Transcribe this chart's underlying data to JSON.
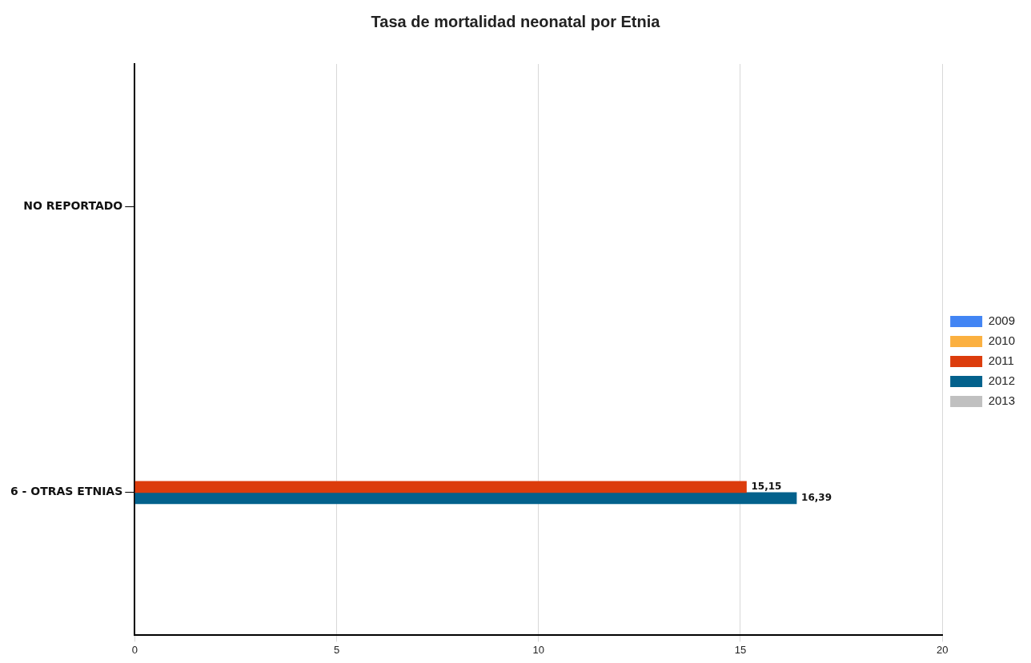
{
  "chart_data": {
    "type": "bar",
    "orientation": "horizontal",
    "title": "Tasa de mortalidad neonatal por Etnia",
    "categories": [
      "NO REPORTADO",
      "6 - OTRAS ETNIAS"
    ],
    "series": [
      {
        "name": "2009",
        "color": "#4285f4",
        "values": [
          null,
          null
        ]
      },
      {
        "name": "2010",
        "color": "#fbb040",
        "values": [
          null,
          null
        ]
      },
      {
        "name": "2011",
        "color": "#dc3c0c",
        "values": [
          null,
          15.15
        ],
        "value_labels": [
          null,
          "15,15"
        ]
      },
      {
        "name": "2012",
        "color": "#03618c",
        "values": [
          null,
          16.39
        ],
        "value_labels": [
          null,
          "16,39"
        ]
      },
      {
        "name": "2013",
        "color": "#c0c0c0",
        "values": [
          null,
          null
        ]
      }
    ],
    "xlim": [
      0,
      20
    ],
    "xticks": [
      0,
      5,
      10,
      15,
      20
    ],
    "grid": "x",
    "legend": "right"
  }
}
